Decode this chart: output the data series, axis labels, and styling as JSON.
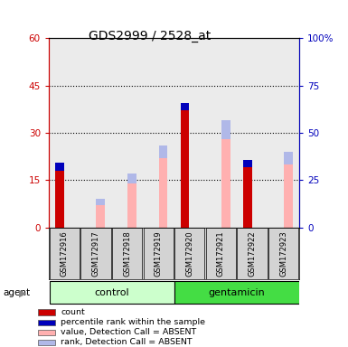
{
  "title": "GDS2999 / 2528_at",
  "samples": [
    "GSM172916",
    "GSM172917",
    "GSM172918",
    "GSM172919",
    "GSM172920",
    "GSM172921",
    "GSM172922",
    "GSM172923"
  ],
  "count_values": [
    18,
    0,
    0,
    0,
    37,
    0,
    19,
    0
  ],
  "rank_values": [
    2.5,
    0,
    0,
    0,
    2.5,
    0,
    2.5,
    0
  ],
  "absent_value_values": [
    0,
    7,
    14,
    22,
    0,
    28,
    0,
    20
  ],
  "absent_rank_values": [
    0,
    2,
    3,
    4,
    0,
    6,
    0,
    4
  ],
  "color_count": "#cc0000",
  "color_rank": "#0000bb",
  "color_absent_value": "#ffb0b0",
  "color_absent_rank": "#b0b8e8",
  "ylim_left": [
    0,
    60
  ],
  "ylim_right": [
    0,
    100
  ],
  "yticks_left": [
    0,
    15,
    30,
    45,
    60
  ],
  "yticks_right": [
    0,
    25,
    50,
    75,
    100
  ],
  "ytick_labels_right": [
    "0",
    "25",
    "50",
    "75",
    "100%"
  ],
  "ytick_labels_left": [
    "0",
    "15",
    "30",
    "45",
    "60"
  ],
  "group_colors_light": "#ccffcc",
  "group_colors_bright": "#44dd44",
  "legend_items": [
    {
      "label": "count",
      "color": "#cc0000"
    },
    {
      "label": "percentile rank within the sample",
      "color": "#0000bb"
    },
    {
      "label": "value, Detection Call = ABSENT",
      "color": "#ffb0b0"
    },
    {
      "label": "rank, Detection Call = ABSENT",
      "color": "#b0b8e8"
    }
  ],
  "plot_bg_color": "#ebebeb",
  "tick_label_color_left": "#cc0000",
  "tick_label_color_right": "#0000bb"
}
